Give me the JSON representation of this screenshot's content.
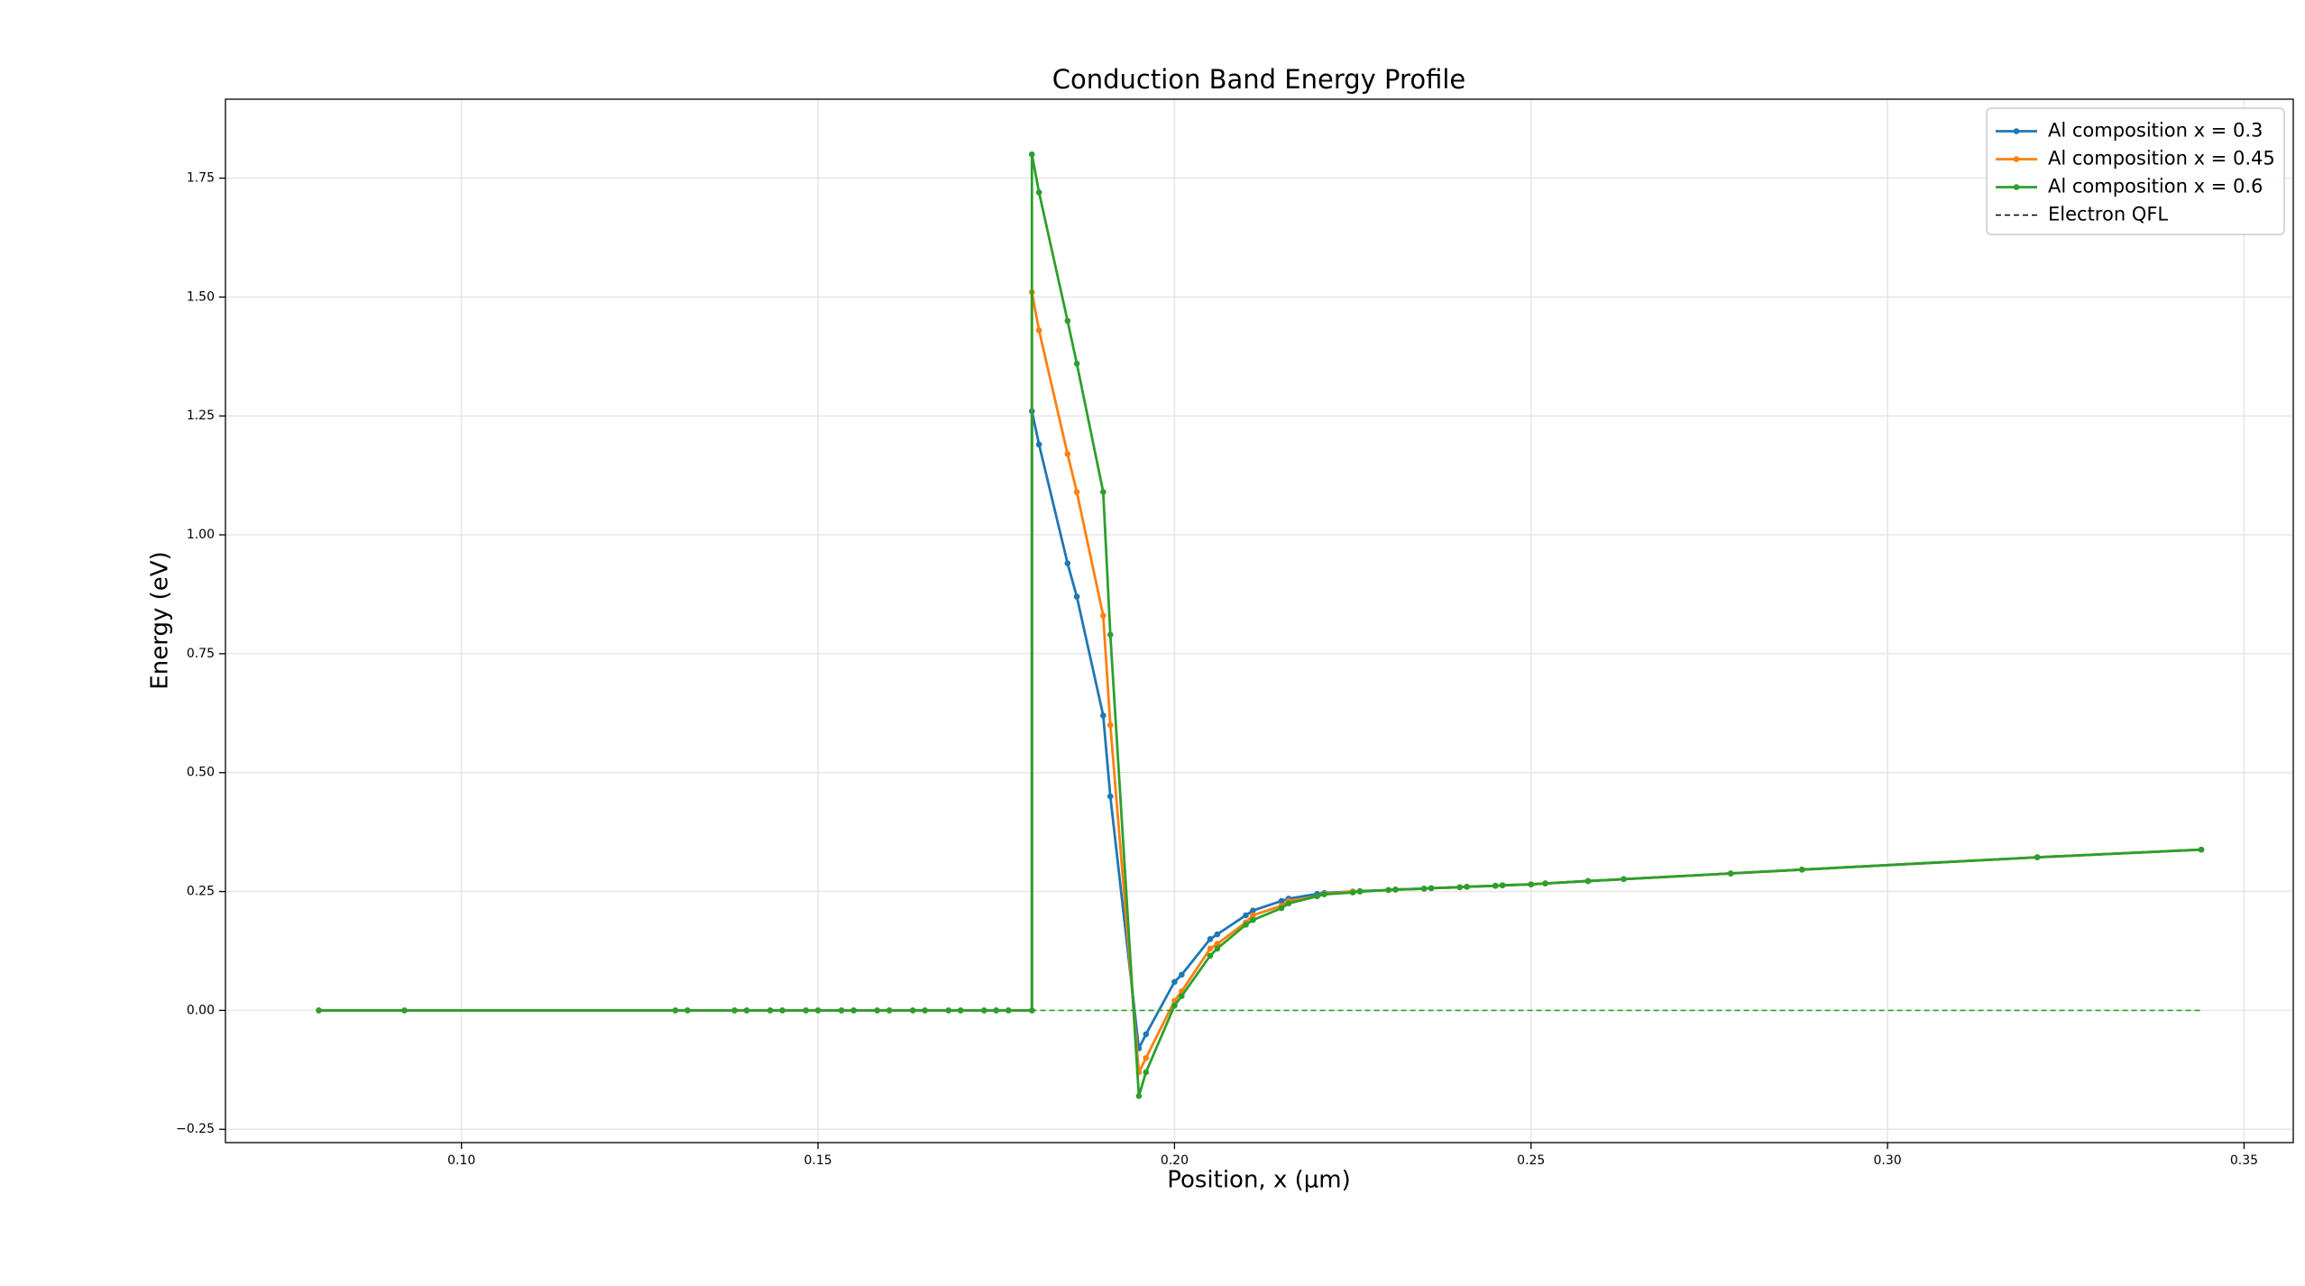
{
  "chart_data": {
    "type": "line",
    "title": "Conduction Band Energy Profile",
    "x_label": "Position, x (μm)",
    "y_label": "Energy (eV)",
    "x": [
      0.08,
      0.092,
      0.13,
      0.1317,
      0.1383,
      0.14,
      0.1433,
      0.145,
      0.1483,
      0.15,
      0.1533,
      0.155,
      0.1583,
      0.16,
      0.1633,
      0.165,
      0.1683,
      0.17,
      0.1733,
      0.175,
      0.1767,
      0.18,
      0.18,
      0.181,
      0.185,
      0.1863,
      0.19,
      0.191,
      0.195,
      0.196,
      0.2,
      0.201,
      0.205,
      0.206,
      0.21,
      0.211,
      0.215,
      0.216,
      0.22,
      0.221,
      0.225,
      0.226,
      0.23,
      0.231,
      0.235,
      0.236,
      0.24,
      0.241,
      0.245,
      0.246,
      0.25,
      0.252,
      0.258,
      0.263,
      0.278,
      0.288,
      0.321,
      0.344
    ],
    "series": [
      {
        "name": "Al composition x = 0.3",
        "color": "#1f77b4",
        "marker": true,
        "values": [
          0,
          0,
          0,
          0,
          0,
          0,
          0,
          0,
          0,
          0,
          0,
          0,
          0,
          0,
          0,
          0,
          0,
          0,
          0,
          0,
          0,
          0,
          1.26,
          1.19,
          0.94,
          0.87,
          0.62,
          0.45,
          -0.08,
          -0.05,
          0.06,
          0.075,
          0.15,
          0.16,
          0.2,
          0.21,
          0.23,
          0.235,
          0.245,
          0.247,
          0.25,
          0.251,
          0.253,
          0.254,
          0.256,
          0.257,
          0.259,
          0.26,
          0.262,
          0.263,
          0.265,
          0.267,
          0.272,
          0.276,
          0.288,
          0.296,
          0.322,
          0.338
        ]
      },
      {
        "name": "Al composition x = 0.45",
        "color": "#ff7f0e",
        "marker": true,
        "values": [
          0,
          0,
          0,
          0,
          0,
          0,
          0,
          0,
          0,
          0,
          0,
          0,
          0,
          0,
          0,
          0,
          0,
          0,
          0,
          0,
          0,
          0,
          1.51,
          1.43,
          1.17,
          1.09,
          0.83,
          0.6,
          -0.13,
          -0.1,
          0.02,
          0.04,
          0.13,
          0.14,
          0.185,
          0.2,
          0.22,
          0.23,
          0.24,
          0.245,
          0.25,
          0.25,
          0.253,
          0.254,
          0.256,
          0.257,
          0.259,
          0.26,
          0.262,
          0.263,
          0.265,
          0.267,
          0.272,
          0.276,
          0.288,
          0.296,
          0.322,
          0.338
        ]
      },
      {
        "name": "Al composition x = 0.6",
        "color": "#2ca02c",
        "marker": true,
        "values": [
          0,
          0,
          0,
          0,
          0,
          0,
          0,
          0,
          0,
          0,
          0,
          0,
          0,
          0,
          0,
          0,
          0,
          0,
          0,
          0,
          0,
          0,
          1.8,
          1.72,
          1.45,
          1.36,
          1.09,
          0.79,
          -0.18,
          -0.13,
          0.01,
          0.03,
          0.115,
          0.13,
          0.18,
          0.19,
          0.215,
          0.225,
          0.24,
          0.244,
          0.248,
          0.25,
          0.253,
          0.254,
          0.256,
          0.257,
          0.259,
          0.26,
          0.262,
          0.263,
          0.265,
          0.267,
          0.272,
          0.276,
          0.288,
          0.296,
          0.322,
          0.338
        ]
      },
      {
        "name": "Electron QFL",
        "color": "#2ca02c",
        "legend_color": "#000000",
        "dashed": true,
        "marker": false,
        "x": [
          0.08,
          0.344
        ],
        "values": [
          0,
          0
        ]
      }
    ],
    "xlim": [
      0.0669,
      0.3569
    ],
    "ylim": [
      -0.278,
      1.916
    ],
    "xticks": [
      {
        "value": 0.1,
        "label": "0.10"
      },
      {
        "value": 0.15,
        "label": "0.15"
      },
      {
        "value": 0.2,
        "label": "0.20"
      },
      {
        "value": 0.25,
        "label": "0.25"
      },
      {
        "value": 0.3,
        "label": "0.30"
      },
      {
        "value": 0.35,
        "label": "0.35"
      }
    ],
    "yticks": [
      {
        "value": -0.25,
        "label": "−0.25"
      },
      {
        "value": 0,
        "label": "0.00"
      },
      {
        "value": 0.25,
        "label": "0.25"
      },
      {
        "value": 0.5,
        "label": "0.50"
      },
      {
        "value": 0.75,
        "label": "0.75"
      },
      {
        "value": 1,
        "label": "1.00"
      },
      {
        "value": 1.25,
        "label": "1.25"
      },
      {
        "value": 1.5,
        "label": "1.50"
      },
      {
        "value": 1.75,
        "label": "1.75"
      }
    ],
    "grid": true,
    "legend": "upper right"
  }
}
